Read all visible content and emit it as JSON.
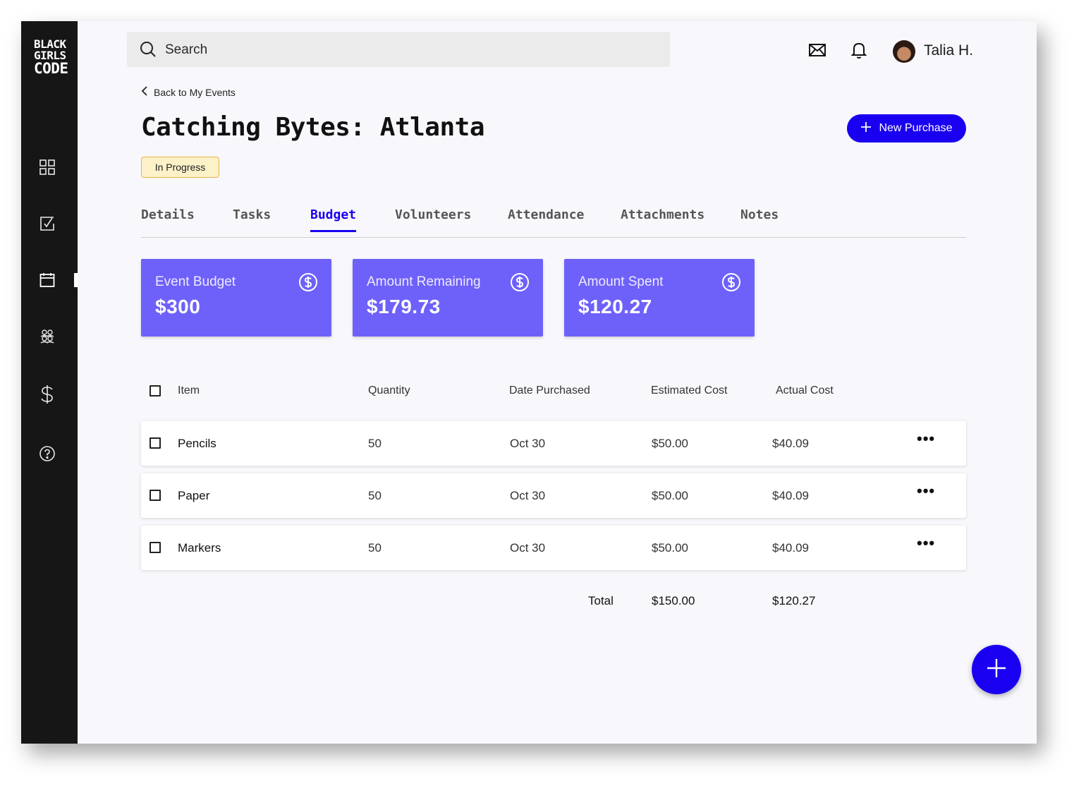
{
  "app": {
    "logo_lines": [
      "BLACK",
      "GIRLS",
      "CODE"
    ]
  },
  "sidebar": {
    "items": [
      {
        "icon": "dashboard-grid-icon"
      },
      {
        "icon": "tasks-checkbox-icon"
      },
      {
        "icon": "calendar-icon",
        "active": true
      },
      {
        "icon": "users-group-icon"
      },
      {
        "icon": "dollar-icon"
      },
      {
        "icon": "help-circle-icon"
      }
    ]
  },
  "header": {
    "search_placeholder": "Search",
    "user_name": "Talia H."
  },
  "page": {
    "back_link": "Back to My Events",
    "title": "Catching Bytes: Atlanta",
    "status": "In Progress",
    "new_purchase_label": "New Purchase"
  },
  "tabs": [
    {
      "label": "Details"
    },
    {
      "label": "Tasks"
    },
    {
      "label": "Budget",
      "active": true
    },
    {
      "label": "Volunteers"
    },
    {
      "label": "Attendance"
    },
    {
      "label": "Attachments"
    },
    {
      "label": "Notes"
    }
  ],
  "cards": [
    {
      "label": "Event Budget",
      "value": "$300"
    },
    {
      "label": "Amount Remaining",
      "value": "$179.73"
    },
    {
      "label": "Amount Spent",
      "value": "$120.27"
    }
  ],
  "table": {
    "headers": {
      "item": "Item",
      "quantity": "Quantity",
      "date": "Date Purchased",
      "estimated": "Estimated Cost",
      "actual": "Actual Cost"
    },
    "rows": [
      {
        "item": "Pencils",
        "quantity": "50",
        "date": "Oct 30",
        "estimated": "$50.00",
        "actual": "$40.09"
      },
      {
        "item": "Paper",
        "quantity": "50",
        "date": "Oct 30",
        "estimated": "$50.00",
        "actual": "$40.09"
      },
      {
        "item": "Markers",
        "quantity": "50",
        "date": "Oct 30",
        "estimated": "$50.00",
        "actual": "$40.09"
      }
    ],
    "total_label": "Total",
    "total_estimated": "$150.00",
    "total_actual": "$120.27"
  },
  "colors": {
    "accent": "#1a00f0",
    "card": "#6e61fa",
    "sidebar": "#161616",
    "badge_bg": "#fdf1c8",
    "badge_border": "#e6b44a"
  }
}
